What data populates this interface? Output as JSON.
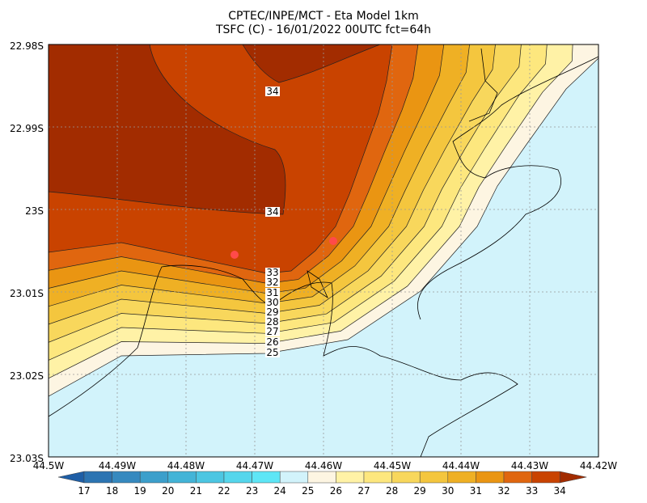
{
  "title": "CPTEC/INPE/MCT -  Eta Model 1km",
  "subtitle": "TSFC (C) - 16/01/2022 00UTC fct=64h",
  "y_labels": [
    "22.98S",
    "22.99S",
    "23S",
    "23.01S",
    "23.02S",
    "23.03S"
  ],
  "x_labels": [
    "44.5W",
    "44.49W",
    "44.48W",
    "44.47W",
    "44.46W",
    "44.45W",
    "44.44W",
    "44.43W",
    "44.42W"
  ],
  "contour_labels": [
    25,
    26,
    27,
    28,
    29,
    30,
    31,
    32,
    33,
    34,
    34
  ],
  "colorbar": {
    "labels": [
      17,
      18,
      19,
      20,
      21,
      22,
      23,
      24,
      25,
      26,
      27,
      28,
      29,
      30,
      31,
      32,
      33,
      34
    ],
    "colors": [
      "#1e5ea6",
      "#2c74b2",
      "#3689bf",
      "#3c9fcb",
      "#43b4d7",
      "#4cc6e2",
      "#55d6ec",
      "#5ee6f6",
      "#d2f3fb",
      "#fdf5e2",
      "#fff2a6",
      "#fde77e",
      "#f8d75c",
      "#f4c63e",
      "#efb024",
      "#ea9512",
      "#e0660f",
      "#c94300",
      "#a22c00"
    ]
  }
}
